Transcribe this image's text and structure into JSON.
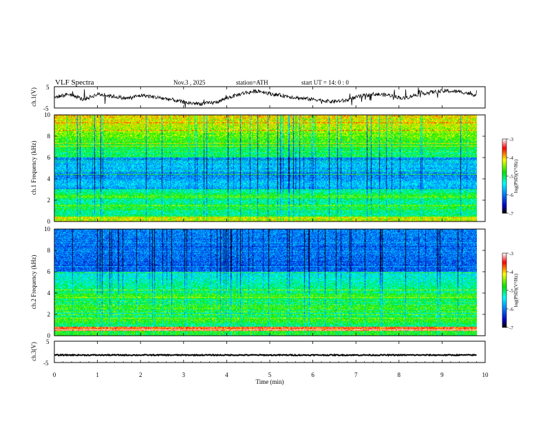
{
  "header": {
    "title": "VLF  Spectra",
    "date": "Nov.3  , 2025",
    "station": "station=ATH",
    "start_ut": "start  UT  =    14: 0   : 0"
  },
  "chart_data": [
    {
      "type": "line",
      "panel": "ch1-waveform",
      "ylabel": "ch.1(V)",
      "ylim": [
        -5,
        5
      ],
      "y_ticks": [
        "5",
        "-5"
      ],
      "xlim": [
        0,
        10
      ],
      "x_end": 9.8,
      "description_values": "noisy oscillating signal roughly between -3 and 3 V",
      "values_approx": [
        0.0,
        1.5,
        -1.0,
        1.5,
        0.5,
        -0.5,
        1.0,
        0.0,
        -1.0,
        -2.5,
        -3.0,
        -2.5,
        0.0,
        2.0,
        3.0,
        1.5,
        0.5,
        -0.5,
        -1.0,
        -2.0,
        -1.5,
        0.5,
        1.5,
        1.0,
        -0.5,
        1.5,
        2.5,
        3.0,
        2.5,
        1.0
      ]
    },
    {
      "type": "heatmap",
      "panel": "ch1-spectrogram",
      "ylabel": "ch.1  Frequency  (kHz)",
      "ylim": [
        0,
        10
      ],
      "y_ticks": [
        "0",
        "2",
        "4",
        "6",
        "8",
        "10"
      ],
      "xlim": [
        0,
        10
      ],
      "x_end": 9.8,
      "colorbar": {
        "label": "log(PSD)(V²/Hz)",
        "range": [
          -7,
          -3
        ],
        "ticks": [
          "-3",
          "-4",
          "-5",
          "-6",
          "-7"
        ]
      }
    },
    {
      "type": "heatmap",
      "panel": "ch2-spectrogram",
      "ylabel": "ch.2  Frequency  (kHz)",
      "ylim": [
        0,
        10
      ],
      "y_ticks": [
        "0",
        "2",
        "4",
        "6",
        "8",
        "10"
      ],
      "xlim": [
        0,
        10
      ],
      "x_end": 9.8,
      "colorbar": {
        "label": "log(PSD)(V²/Hz)",
        "range": [
          -7,
          -3
        ],
        "ticks": [
          "-3",
          "-4",
          "-5",
          "-6",
          "-7"
        ]
      }
    },
    {
      "type": "line",
      "panel": "ch3-waveform",
      "ylabel": "ch.3(V)",
      "ylim": [
        -5,
        5
      ],
      "y_ticks": [
        "5",
        "-5"
      ],
      "xlim": [
        0,
        10
      ],
      "x_end": 9.8,
      "values_approx": [
        -1.5,
        -1.5,
        -1.5,
        -1.5,
        -1.5,
        -1.5,
        -1.5,
        -1.5,
        -1.5,
        -1.5,
        -1.5
      ]
    }
  ],
  "x_axis": {
    "label": "Time  (min)",
    "ticks": [
      "0",
      "1",
      "2",
      "3",
      "4",
      "5",
      "6",
      "7",
      "8",
      "9",
      "10"
    ]
  },
  "colors": {
    "axis": "#000000",
    "colormap": [
      "#000000",
      "#0000c8",
      "#0096ff",
      "#00ffff",
      "#00e600",
      "#ffff00",
      "#ff0000",
      "#ffffff"
    ]
  }
}
